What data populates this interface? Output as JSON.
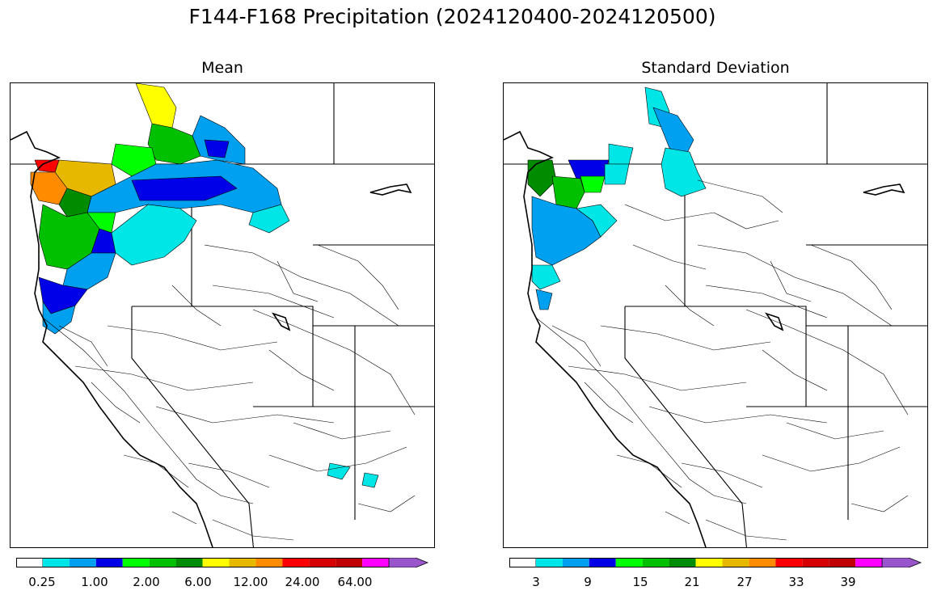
{
  "title": "F144-F168 Precipitation (2024120400-2024120500)",
  "panels": [
    {
      "title": "Mean",
      "colorbar": {
        "colors": [
          "#ffffff",
          "#00e5e5",
          "#00a0f0",
          "#0000e8",
          "#00ff00",
          "#00c000",
          "#008c00",
          "#ffff00",
          "#e6b800",
          "#ff8c00",
          "#ff0000",
          "#d60000",
          "#c00000",
          "#ff00ff",
          "#9955cc"
        ],
        "tick_labels": [
          "0.25",
          "1.00",
          "2.00",
          "6.00",
          "12.00",
          "24.00",
          "64.00"
        ]
      }
    },
    {
      "title": "Standard Deviation",
      "colorbar": {
        "colors": [
          "#ffffff",
          "#00e5e5",
          "#00a0f0",
          "#0000e8",
          "#00ff00",
          "#00c000",
          "#008c00",
          "#ffff00",
          "#e6b800",
          "#ff8c00",
          "#ff0000",
          "#d60000",
          "#c00000",
          "#ff00ff",
          "#9955cc"
        ],
        "tick_labels": [
          "3",
          "9",
          "15",
          "21",
          "27",
          "33",
          "39"
        ]
      }
    }
  ]
}
